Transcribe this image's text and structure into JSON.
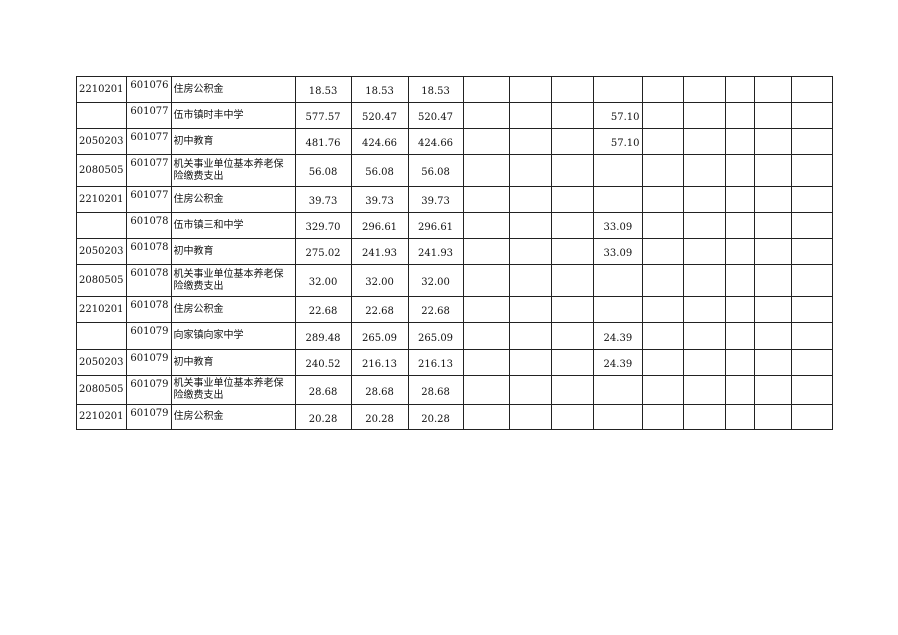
{
  "table": {
    "rows": [
      {
        "func_code": "2210201",
        "unit_code": "601076",
        "name": "住房公积金",
        "c1": "18.53",
        "c2": "18.53",
        "c3": "18.53",
        "c7": ""
      },
      {
        "func_code": "",
        "unit_code": "601077",
        "name": "伍市镇时丰中学",
        "c1": "577.57",
        "c2": "520.47",
        "c3": "520.47",
        "c7": "57.10"
      },
      {
        "func_code": "2050203",
        "unit_code": "601077",
        "name": "初中教育",
        "c1": "481.76",
        "c2": "424.66",
        "c3": "424.66",
        "c7": "57.10"
      },
      {
        "func_code": "2080505",
        "unit_code": "601077",
        "name": "机关事业单位基本养老保险缴费支出",
        "c1": "56.08",
        "c2": "56.08",
        "c3": "56.08",
        "c7": ""
      },
      {
        "func_code": "2210201",
        "unit_code": "601077",
        "name": "住房公积金",
        "c1": "39.73",
        "c2": "39.73",
        "c3": "39.73",
        "c7": ""
      },
      {
        "func_code": "",
        "unit_code": "601078",
        "name": "伍市镇三和中学",
        "c1": "329.70",
        "c2": "296.61",
        "c3": "296.61",
        "c7": "33.09"
      },
      {
        "func_code": "2050203",
        "unit_code": "601078",
        "name": "初中教育",
        "c1": "275.02",
        "c2": "241.93",
        "c3": "241.93",
        "c7": "33.09"
      },
      {
        "func_code": "2080505",
        "unit_code": "601078",
        "name": "机关事业单位基本养老保险缴费支出",
        "c1": "32.00",
        "c2": "32.00",
        "c3": "32.00",
        "c7": ""
      },
      {
        "func_code": "2210201",
        "unit_code": "601078",
        "name": "住房公积金",
        "c1": "22.68",
        "c2": "22.68",
        "c3": "22.68",
        "c7": ""
      },
      {
        "func_code": "",
        "unit_code": "601079",
        "name": "向家镇向家中学",
        "c1": "289.48",
        "c2": "265.09",
        "c3": "265.09",
        "c7": "24.39"
      },
      {
        "func_code": "2050203",
        "unit_code": "601079",
        "name": "初中教育",
        "c1": "240.52",
        "c2": "216.13",
        "c3": "216.13",
        "c7": "24.39"
      },
      {
        "func_code": "2080505",
        "unit_code": "601079",
        "name": "机关事业单位基本养老保险缴费支出",
        "c1": "28.68",
        "c2": "28.68",
        "c3": "28.68",
        "c7": ""
      },
      {
        "func_code": "2210201",
        "unit_code": "601079",
        "name": "住房公积金",
        "c1": "20.28",
        "c2": "20.28",
        "c3": "20.28",
        "c7": ""
      }
    ]
  }
}
